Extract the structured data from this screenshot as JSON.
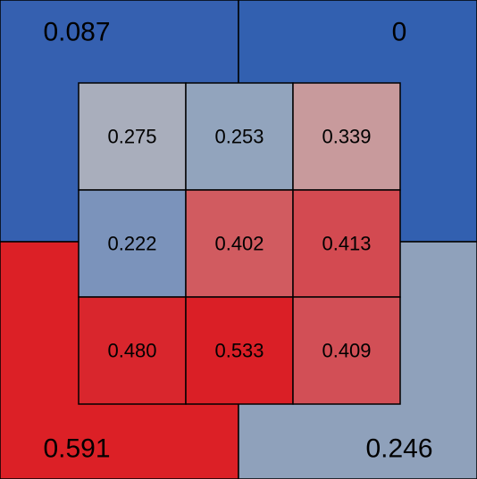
{
  "chart_data": {
    "type": "heatmap",
    "title": "",
    "color_scale": {
      "low": "#2f5fb0",
      "mid": "#b3b3bb",
      "high": "#dc2026",
      "domain": [
        0,
        0.27,
        0.533
      ]
    },
    "outer": {
      "rows": 2,
      "cols": 2,
      "cells": [
        {
          "row": 0,
          "col": 0,
          "value": 0.087,
          "label": "0.087",
          "color": "#3560b0"
        },
        {
          "row": 0,
          "col": 1,
          "value": 0,
          "label": "0",
          "color": "#3260b0"
        },
        {
          "row": 1,
          "col": 0,
          "value": 0.591,
          "label": "0.591",
          "color": "#dc2026"
        },
        {
          "row": 1,
          "col": 1,
          "value": 0.246,
          "label": "0.246",
          "color": "#8fa1bb"
        }
      ]
    },
    "inner": {
      "rows": 3,
      "cols": 3,
      "cells": [
        {
          "row": 0,
          "col": 0,
          "value": 0.275,
          "label": "0.275",
          "color": "#a9aebc"
        },
        {
          "row": 0,
          "col": 1,
          "value": 0.253,
          "label": "0.253",
          "color": "#92a4bd"
        },
        {
          "row": 0,
          "col": 2,
          "value": 0.339,
          "label": "0.339",
          "color": "#c89a9c"
        },
        {
          "row": 1,
          "col": 0,
          "value": 0.222,
          "label": "0.222",
          "color": "#7b93bb"
        },
        {
          "row": 1,
          "col": 1,
          "value": 0.402,
          "label": "0.402",
          "color": "#d15b60"
        },
        {
          "row": 1,
          "col": 2,
          "value": 0.413,
          "label": "0.413",
          "color": "#d34a51"
        },
        {
          "row": 2,
          "col": 0,
          "value": 0.48,
          "label": "0.480",
          "color": "#d9262d"
        },
        {
          "row": 2,
          "col": 1,
          "value": 0.533,
          "label": "0.533",
          "color": "#da1f26"
        },
        {
          "row": 2,
          "col": 2,
          "value": 0.409,
          "label": "0.409",
          "color": "#d24f56"
        }
      ]
    }
  }
}
